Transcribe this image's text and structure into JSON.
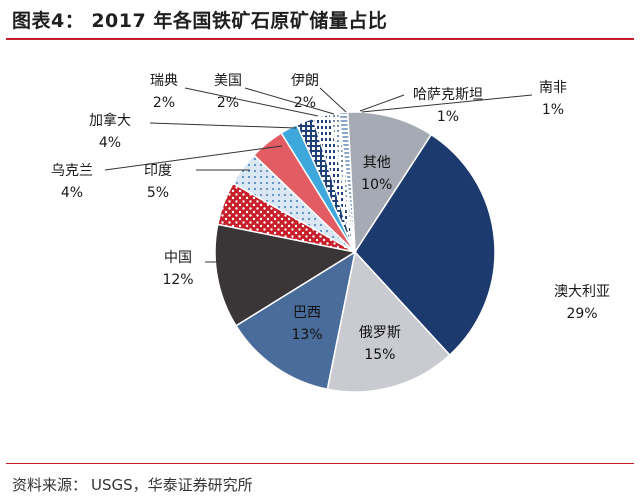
{
  "header": {
    "title": "图表4：   2017 年各国铁矿石原矿储量占比"
  },
  "footer": {
    "label": "资料来源：",
    "source": "USGS，华泰证券研究所"
  },
  "chart_data": {
    "type": "pie",
    "title": "2017 年各国铁矿石原矿储量占比",
    "unit": "%",
    "slices": [
      {
        "name": "其他",
        "value": 10,
        "label": "10%",
        "color": "#a6aab4"
      },
      {
        "name": "澳大利亚",
        "value": 29,
        "label": "29%",
        "color": "#1d3a6e"
      },
      {
        "name": "俄罗斯",
        "value": 15,
        "label": "15%",
        "color": "#c9cbd0"
      },
      {
        "name": "巴西",
        "value": 13,
        "label": "13%",
        "color": "#4a6c9a"
      },
      {
        "name": "中国",
        "value": 12,
        "label": "12%",
        "color": "#3a3536"
      },
      {
        "name": "印度",
        "value": 5,
        "label": "5%",
        "color": "#c8202b"
      },
      {
        "name": "乌克兰",
        "value": 4,
        "label": "4%",
        "color": "#dbe8f3"
      },
      {
        "name": "加拿大",
        "value": 4,
        "label": "4%",
        "color": "#e25c63"
      },
      {
        "name": "瑞典",
        "value": 2,
        "label": "2%",
        "color": "#3ea8dd"
      },
      {
        "name": "美国",
        "value": 2,
        "label": "2%",
        "color": "#1e3f78"
      },
      {
        "name": "伊朗",
        "value": 2,
        "label": "2%",
        "color": "#ffffff"
      },
      {
        "name": "哈萨克斯坦",
        "value": 1,
        "label": "1%",
        "color": "#ffffff"
      },
      {
        "name": "南非",
        "value": 1,
        "label": "1%",
        "color": "#ffffff"
      }
    ]
  }
}
